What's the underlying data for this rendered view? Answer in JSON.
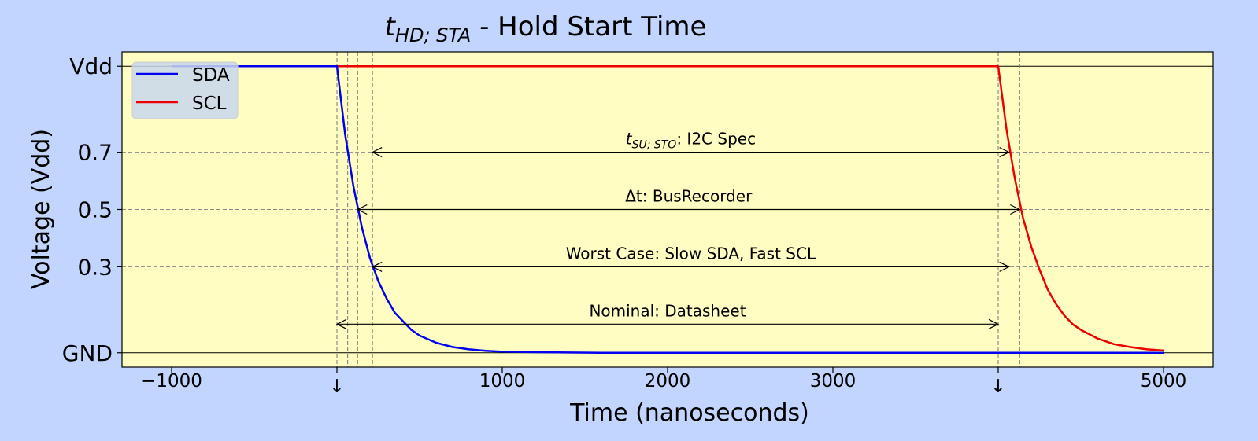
{
  "title": {
    "sym": "t",
    "sub": "HD; STA",
    "rest": " - Hold Start Time"
  },
  "colors": {
    "background": "#c1d5fe",
    "plot_bg": "#fffdc1",
    "sda": "#0000ee",
    "scl": "#ee0000"
  },
  "chart_data": {
    "type": "line",
    "xlabel": "Time (nanoseconds)",
    "ylabel": "Voltage (Vdd)",
    "xlim": [
      -1300,
      5300
    ],
    "ylim": [
      -0.05,
      1.05
    ],
    "xticks": [
      {
        "value": -1000,
        "label": "−1000"
      },
      {
        "value": 0,
        "label": "↓"
      },
      {
        "value": 1000,
        "label": "1000"
      },
      {
        "value": 2000,
        "label": "2000"
      },
      {
        "value": 3000,
        "label": "3000"
      },
      {
        "value": 4000,
        "label": "↓"
      },
      {
        "value": 5000,
        "label": "5000"
      }
    ],
    "yticks": [
      {
        "value": 1.0,
        "label": "Vdd"
      },
      {
        "value": 0.7,
        "label": "0.7"
      },
      {
        "value": 0.5,
        "label": "0.5"
      },
      {
        "value": 0.3,
        "label": "0.3"
      },
      {
        "value": 0.0,
        "label": "GND"
      }
    ],
    "vdd_level": 1.0,
    "gnd_level": 0.0,
    "threshold_lines": [
      0.7,
      0.5,
      0.3
    ],
    "event_lines": [
      0,
      125,
      215,
      4000,
      65,
      4130
    ],
    "series": [
      {
        "name": "SDA",
        "x": [
          -1000,
          0,
          50,
          100,
          150,
          200,
          250,
          300,
          350,
          400,
          450,
          500,
          600,
          700,
          800,
          900,
          1000,
          1200,
          1400,
          1600,
          1800,
          2000,
          3000,
          4000,
          5000
        ],
        "y": [
          1.0,
          1.0,
          0.76,
          0.58,
          0.44,
          0.33,
          0.25,
          0.19,
          0.14,
          0.11,
          0.08,
          0.06,
          0.035,
          0.02,
          0.012,
          0.007,
          0.004,
          0.002,
          0.001,
          0.0,
          0.0,
          0.0,
          0.0,
          0.0,
          0.0
        ]
      },
      {
        "name": "SCL",
        "x": [
          -1000,
          0,
          1000,
          2000,
          3000,
          4000,
          4050,
          4100,
          4150,
          4200,
          4250,
          4300,
          4350,
          4400,
          4450,
          4500,
          4600,
          4700,
          4800,
          4900,
          5000
        ],
        "y": [
          1.0,
          1.0,
          1.0,
          1.0,
          1.0,
          1.0,
          0.78,
          0.61,
          0.47,
          0.37,
          0.29,
          0.22,
          0.17,
          0.13,
          0.1,
          0.08,
          0.05,
          0.03,
          0.02,
          0.012,
          0.008
        ]
      }
    ],
    "annotations": [
      {
        "sym": "t",
        "sub": "SU; STO",
        "rest": ": I2C Spec",
        "x1": 215,
        "x2": 4065,
        "y": 0.7
      },
      {
        "text": "Δt: BusRecorder",
        "x1": 125,
        "x2": 4130,
        "y": 0.5
      },
      {
        "text": "Worst Case: Slow SDA, Fast SCL",
        "x1": 215,
        "x2": 4065,
        "y": 0.3
      },
      {
        "text": "Nominal: Datasheet",
        "x1": 0,
        "x2": 4000,
        "y": 0.1
      }
    ],
    "legend": {
      "position": "top-left",
      "entries": [
        "SDA",
        "SCL"
      ]
    },
    "grid": "thresholds-only"
  }
}
